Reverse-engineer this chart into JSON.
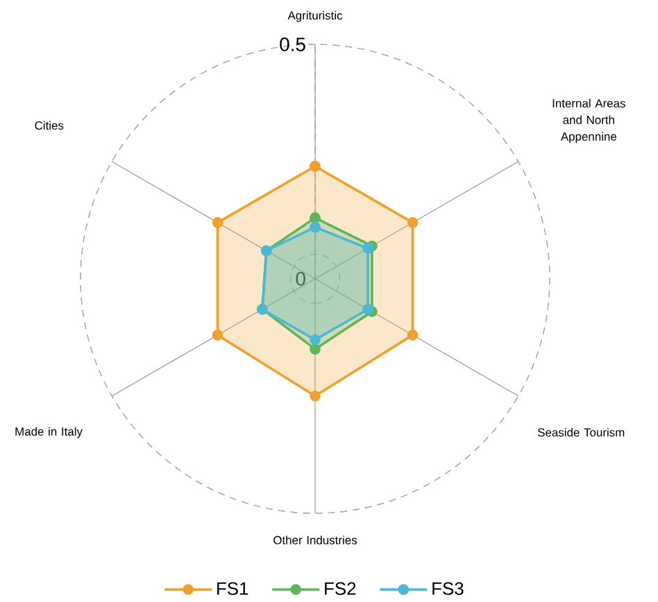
{
  "chart_data": {
    "type": "radar",
    "categories": [
      "Agrituristic",
      "Internal Areas and North Appennine",
      "Seaside Tourism",
      "Other Industries",
      "Made in Italy",
      "Cities"
    ],
    "series": [
      {
        "name": "FS1",
        "color": "#f0a02c",
        "values": [
          0.24,
          0.24,
          0.24,
          0.25,
          0.24,
          0.24
        ]
      },
      {
        "name": "FS2",
        "color": "#5cb55a",
        "values": [
          0.13,
          0.14,
          0.14,
          0.15,
          0.13,
          0.12
        ]
      },
      {
        "name": "FS3",
        "color": "#4cb8d6",
        "values": [
          0.11,
          0.13,
          0.13,
          0.13,
          0.13,
          0.12
        ]
      }
    ],
    "ylim": [
      0,
      0.5
    ],
    "yticks": [
      0,
      0.5
    ],
    "grid": true,
    "legend": "bottom",
    "marker": "circle",
    "line_style": "solid"
  }
}
